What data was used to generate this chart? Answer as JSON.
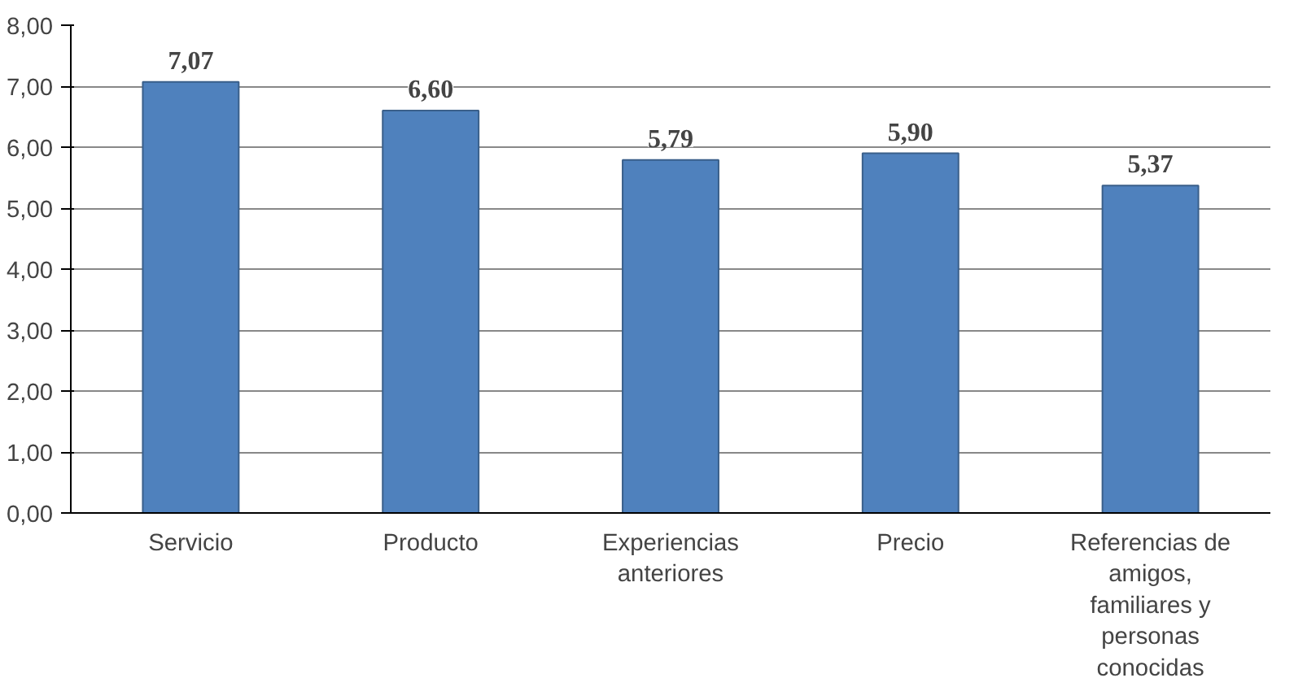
{
  "chart_data": {
    "type": "bar",
    "categories": [
      "Servicio",
      "Producto",
      "Experiencias anteriores",
      "Precio",
      "Referencias de amigos, familiares y personas conocidas"
    ],
    "values": [
      7.07,
      6.6,
      5.79,
      5.9,
      5.37
    ],
    "value_labels": [
      "7,07",
      "6,60",
      "5,79",
      "5,90",
      "5,37"
    ],
    "color": "#4f81bd",
    "ylim": [
      0,
      8
    ],
    "yticks": [
      {
        "value": 0,
        "label": "0,00"
      },
      {
        "value": 1,
        "label": "1,00"
      },
      {
        "value": 2,
        "label": "2,00"
      },
      {
        "value": 3,
        "label": "3,00"
      },
      {
        "value": 4,
        "label": "4,00"
      },
      {
        "value": 5,
        "label": "5,00"
      },
      {
        "value": 6,
        "label": "6,00"
      },
      {
        "value": 7,
        "label": "7,00"
      },
      {
        "value": 8,
        "label": "8,00"
      }
    ],
    "grid": "y"
  }
}
